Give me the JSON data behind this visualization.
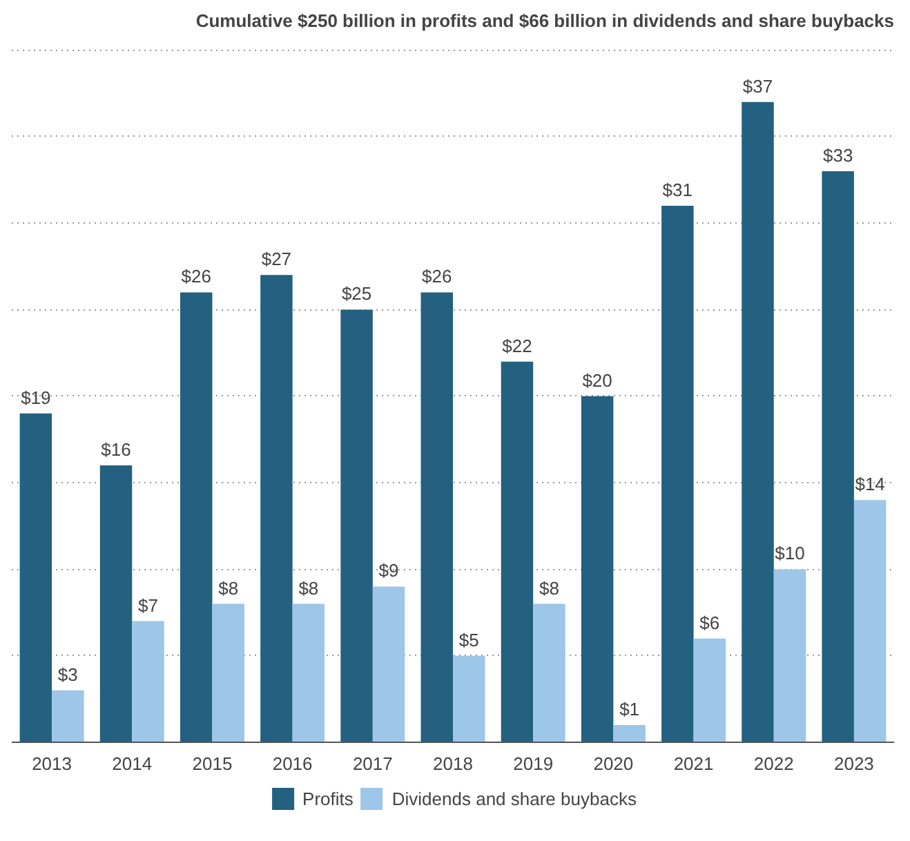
{
  "chart_data": {
    "type": "bar",
    "title": "Cumulative $250 billion in profits and $66 billion in dividends and share buybacks",
    "categories": [
      "2013",
      "2014",
      "2015",
      "2016",
      "2017",
      "2018",
      "2019",
      "2020",
      "2021",
      "2022",
      "2023"
    ],
    "series": [
      {
        "name": "Profits",
        "color": "#24607f",
        "values": [
          19,
          16,
          26,
          27,
          25,
          26,
          22,
          20,
          31,
          37,
          33
        ],
        "value_labels": [
          "$19",
          "$16",
          "$26",
          "$27",
          "$25",
          "$26",
          "$22",
          "$20",
          "$31",
          "$37",
          "$33"
        ]
      },
      {
        "name": "Dividends and share buybacks",
        "color": "#9dc6e8",
        "values": [
          3,
          7,
          8,
          8,
          9,
          5,
          8,
          1,
          6,
          10,
          14
        ],
        "value_labels": [
          "$3",
          "$7",
          "$8",
          "$8",
          "$9",
          "$5",
          "$8",
          "$1",
          "$6",
          "$10",
          "$14"
        ]
      }
    ],
    "tick_labels": "x",
    "grid": "y",
    "legend": "bottom"
  }
}
